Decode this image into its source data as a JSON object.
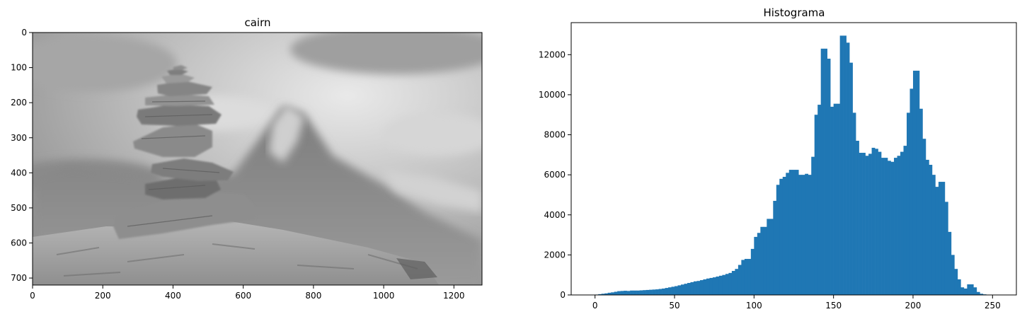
{
  "chart_data": [
    {
      "type": "image",
      "title": "cairn",
      "colormap": "gray",
      "xlim": [
        0,
        1280
      ],
      "ylim": [
        720,
        0
      ],
      "xticks": [
        0,
        200,
        400,
        600,
        800,
        1000,
        1200
      ],
      "yticks": [
        0,
        100,
        200,
        300,
        400,
        500,
        600,
        700
      ]
    },
    {
      "type": "bar",
      "title": "Histograma",
      "color": "#1f77b4",
      "bin_width": 2,
      "xlim": [
        -15,
        265
      ],
      "ylim": [
        0,
        13600
      ],
      "xticks": [
        0,
        50,
        100,
        150,
        200,
        250
      ],
      "yticks": [
        0,
        2000,
        4000,
        6000,
        8000,
        10000,
        12000
      ],
      "bins": [
        {
          "x": 0,
          "y": 20
        },
        {
          "x": 2,
          "y": 40
        },
        {
          "x": 4,
          "y": 60
        },
        {
          "x": 6,
          "y": 80
        },
        {
          "x": 8,
          "y": 110
        },
        {
          "x": 10,
          "y": 130
        },
        {
          "x": 12,
          "y": 160
        },
        {
          "x": 14,
          "y": 190
        },
        {
          "x": 16,
          "y": 200
        },
        {
          "x": 18,
          "y": 210
        },
        {
          "x": 20,
          "y": 200
        },
        {
          "x": 22,
          "y": 220
        },
        {
          "x": 24,
          "y": 220
        },
        {
          "x": 26,
          "y": 220
        },
        {
          "x": 28,
          "y": 230
        },
        {
          "x": 30,
          "y": 240
        },
        {
          "x": 32,
          "y": 250
        },
        {
          "x": 34,
          "y": 260
        },
        {
          "x": 36,
          "y": 270
        },
        {
          "x": 38,
          "y": 280
        },
        {
          "x": 40,
          "y": 300
        },
        {
          "x": 42,
          "y": 320
        },
        {
          "x": 44,
          "y": 350
        },
        {
          "x": 46,
          "y": 380
        },
        {
          "x": 48,
          "y": 410
        },
        {
          "x": 50,
          "y": 440
        },
        {
          "x": 52,
          "y": 480
        },
        {
          "x": 54,
          "y": 520
        },
        {
          "x": 56,
          "y": 560
        },
        {
          "x": 58,
          "y": 600
        },
        {
          "x": 60,
          "y": 640
        },
        {
          "x": 62,
          "y": 680
        },
        {
          "x": 64,
          "y": 700
        },
        {
          "x": 66,
          "y": 740
        },
        {
          "x": 68,
          "y": 780
        },
        {
          "x": 70,
          "y": 820
        },
        {
          "x": 72,
          "y": 850
        },
        {
          "x": 74,
          "y": 880
        },
        {
          "x": 76,
          "y": 920
        },
        {
          "x": 78,
          "y": 960
        },
        {
          "x": 80,
          "y": 1000
        },
        {
          "x": 82,
          "y": 1050
        },
        {
          "x": 84,
          "y": 1100
        },
        {
          "x": 86,
          "y": 1200
        },
        {
          "x": 88,
          "y": 1300
        },
        {
          "x": 90,
          "y": 1500
        },
        {
          "x": 92,
          "y": 1750
        },
        {
          "x": 94,
          "y": 1800
        },
        {
          "x": 96,
          "y": 1800
        },
        {
          "x": 98,
          "y": 2300
        },
        {
          "x": 100,
          "y": 2900
        },
        {
          "x": 102,
          "y": 3100
        },
        {
          "x": 104,
          "y": 3400
        },
        {
          "x": 106,
          "y": 3400
        },
        {
          "x": 108,
          "y": 3800
        },
        {
          "x": 110,
          "y": 3800
        },
        {
          "x": 112,
          "y": 4700
        },
        {
          "x": 114,
          "y": 5500
        },
        {
          "x": 116,
          "y": 5800
        },
        {
          "x": 118,
          "y": 5900
        },
        {
          "x": 120,
          "y": 6100
        },
        {
          "x": 122,
          "y": 6250
        },
        {
          "x": 124,
          "y": 6250
        },
        {
          "x": 126,
          "y": 6250
        },
        {
          "x": 128,
          "y": 6000
        },
        {
          "x": 130,
          "y": 6000
        },
        {
          "x": 132,
          "y": 6050
        },
        {
          "x": 134,
          "y": 6000
        },
        {
          "x": 136,
          "y": 6900
        },
        {
          "x": 138,
          "y": 9000
        },
        {
          "x": 140,
          "y": 9500
        },
        {
          "x": 142,
          "y": 12300
        },
        {
          "x": 144,
          "y": 12300
        },
        {
          "x": 146,
          "y": 11800
        },
        {
          "x": 148,
          "y": 9400
        },
        {
          "x": 150,
          "y": 9550
        },
        {
          "x": 152,
          "y": 9550
        },
        {
          "x": 154,
          "y": 12950
        },
        {
          "x": 156,
          "y": 12950
        },
        {
          "x": 158,
          "y": 12600
        },
        {
          "x": 160,
          "y": 11600
        },
        {
          "x": 162,
          "y": 9100
        },
        {
          "x": 164,
          "y": 7700
        },
        {
          "x": 166,
          "y": 7100
        },
        {
          "x": 168,
          "y": 7100
        },
        {
          "x": 170,
          "y": 6950
        },
        {
          "x": 172,
          "y": 7050
        },
        {
          "x": 174,
          "y": 7350
        },
        {
          "x": 176,
          "y": 7300
        },
        {
          "x": 178,
          "y": 7150
        },
        {
          "x": 180,
          "y": 6850
        },
        {
          "x": 182,
          "y": 6850
        },
        {
          "x": 184,
          "y": 6700
        },
        {
          "x": 186,
          "y": 6650
        },
        {
          "x": 188,
          "y": 6850
        },
        {
          "x": 190,
          "y": 6950
        },
        {
          "x": 192,
          "y": 7150
        },
        {
          "x": 194,
          "y": 7450
        },
        {
          "x": 196,
          "y": 9100
        },
        {
          "x": 198,
          "y": 10300
        },
        {
          "x": 200,
          "y": 11200
        },
        {
          "x": 202,
          "y": 11200
        },
        {
          "x": 204,
          "y": 9300
        },
        {
          "x": 206,
          "y": 7800
        },
        {
          "x": 208,
          "y": 6750
        },
        {
          "x": 210,
          "y": 6500
        },
        {
          "x": 212,
          "y": 6000
        },
        {
          "x": 214,
          "y": 5400
        },
        {
          "x": 216,
          "y": 5650
        },
        {
          "x": 218,
          "y": 5650
        },
        {
          "x": 220,
          "y": 4650
        },
        {
          "x": 222,
          "y": 3150
        },
        {
          "x": 224,
          "y": 2000
        },
        {
          "x": 226,
          "y": 1300
        },
        {
          "x": 228,
          "y": 780
        },
        {
          "x": 230,
          "y": 380
        },
        {
          "x": 232,
          "y": 320
        },
        {
          "x": 234,
          "y": 530
        },
        {
          "x": 236,
          "y": 530
        },
        {
          "x": 238,
          "y": 380
        },
        {
          "x": 240,
          "y": 150
        },
        {
          "x": 242,
          "y": 60
        },
        {
          "x": 244,
          "y": 30
        },
        {
          "x": 246,
          "y": 15
        }
      ]
    }
  ]
}
